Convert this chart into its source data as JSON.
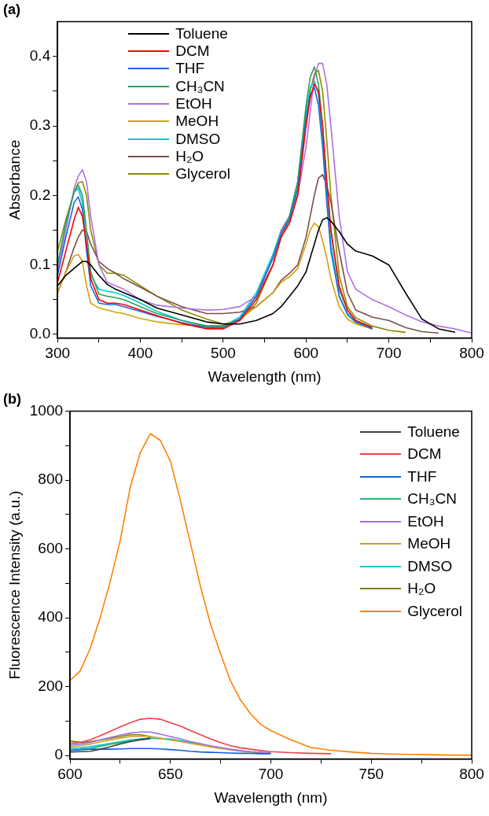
{
  "chart_data": [
    {
      "type": "line",
      "title": "(a)",
      "xlabel": "Wavelength (nm)",
      "ylabel": "Absorbance",
      "marker": "none",
      "line_style": "solid",
      "legend": "top left",
      "xlim": [
        300,
        800
      ],
      "ylim": [
        -0.005,
        0.45
      ],
      "xticks": [
        300,
        {
          "value": 350,
          "label": null
        },
        400,
        {
          "value": 450,
          "label": null
        },
        500,
        {
          "value": 550,
          "label": null
        },
        600,
        {
          "value": 650,
          "label": null
        },
        700,
        {
          "value": 750,
          "label": null
        },
        800
      ],
      "yticks": [
        {
          "value": 0,
          "label": "0.0"
        },
        {
          "value": 0.05,
          "label": null
        },
        0.1,
        {
          "value": 0.15,
          "label": null
        },
        0.2,
        {
          "value": 0.25,
          "label": null
        },
        0.3,
        {
          "value": 0.35,
          "label": null
        },
        0.4
      ],
      "x": [
        300,
        310,
        320,
        325,
        330,
        335,
        340,
        350,
        360,
        370,
        380,
        400,
        420,
        450,
        480,
        500,
        520,
        540,
        560,
        570,
        580,
        590,
        600,
        605,
        610,
        615,
        620,
        625,
        630,
        640,
        650,
        660,
        680,
        700,
        720,
        740,
        760,
        780,
        800
      ],
      "series": [
        {
          "name": "Toluene",
          "color": "#000000",
          "values": [
            0.07,
            0.085,
            0.095,
            0.1,
            0.105,
            0.105,
            0.1,
            0.085,
            0.072,
            0.065,
            0.06,
            0.05,
            0.038,
            0.028,
            0.018,
            0.015,
            0.015,
            0.02,
            0.03,
            0.04,
            0.055,
            0.07,
            0.09,
            0.11,
            0.13,
            0.15,
            0.165,
            0.168,
            0.163,
            0.148,
            0.13,
            0.12,
            0.113,
            0.1,
            0.06,
            0.022,
            0.008,
            0.003,
            null
          ]
        },
        {
          "name": "DCM",
          "color": "#ff0000",
          "values": [
            0.075,
            0.12,
            0.165,
            0.183,
            0.17,
            0.13,
            0.08,
            0.05,
            0.045,
            0.045,
            0.043,
            0.035,
            0.027,
            0.016,
            0.008,
            0.008,
            0.02,
            0.05,
            0.1,
            0.14,
            0.16,
            0.2,
            0.3,
            0.34,
            0.36,
            0.35,
            0.3,
            0.22,
            0.15,
            0.07,
            0.035,
            0.02,
            0.01,
            null,
            null,
            null,
            null,
            null,
            null
          ]
        },
        {
          "name": "THF",
          "color": "#1f66e0",
          "values": [
            0.085,
            0.14,
            0.19,
            0.198,
            0.18,
            0.12,
            0.07,
            0.045,
            0.043,
            0.043,
            0.04,
            0.033,
            0.026,
            0.017,
            0.01,
            0.01,
            0.022,
            0.055,
            0.11,
            0.145,
            0.165,
            0.21,
            0.31,
            0.345,
            0.355,
            0.33,
            0.27,
            0.19,
            0.12,
            0.055,
            0.03,
            0.018,
            0.008,
            null,
            null,
            null,
            null,
            null,
            null
          ]
        },
        {
          "name": "CH₃CN",
          "color": "#2ca05a",
          "values": [
            0.1,
            0.16,
            0.205,
            0.215,
            0.2,
            0.15,
            0.09,
            0.058,
            0.055,
            0.053,
            0.05,
            0.04,
            0.03,
            0.02,
            0.012,
            0.012,
            0.022,
            0.055,
            0.11,
            0.145,
            0.17,
            0.22,
            0.33,
            0.37,
            0.385,
            0.36,
            0.3,
            0.22,
            0.15,
            0.065,
            0.035,
            0.02,
            0.01,
            null,
            null,
            null,
            null,
            null,
            null
          ]
        },
        {
          "name": "EtOH",
          "color": "#b070e0",
          "values": [
            0.09,
            0.15,
            0.21,
            0.228,
            0.237,
            0.22,
            0.17,
            0.1,
            0.075,
            0.07,
            0.065,
            0.05,
            0.042,
            0.038,
            0.035,
            0.036,
            0.04,
            0.055,
            0.1,
            0.15,
            0.17,
            0.2,
            0.27,
            0.32,
            0.37,
            0.39,
            0.39,
            0.36,
            0.3,
            0.17,
            0.09,
            0.065,
            0.05,
            0.04,
            0.028,
            0.018,
            0.012,
            0.008,
            0.002
          ]
        },
        {
          "name": "MeOH",
          "color": "#d4a010",
          "values": [
            0.06,
            0.09,
            0.113,
            0.115,
            0.105,
            0.07,
            0.045,
            0.038,
            0.035,
            0.032,
            0.03,
            0.023,
            0.018,
            0.014,
            0.012,
            0.013,
            0.022,
            0.04,
            0.06,
            0.075,
            0.083,
            0.095,
            0.13,
            0.15,
            0.16,
            0.155,
            0.135,
            0.11,
            0.08,
            0.04,
            0.022,
            0.015,
            0.008,
            null,
            null,
            null,
            null,
            null,
            null
          ]
        },
        {
          "name": "DMSO",
          "color": "#00c8d0",
          "values": [
            0.1,
            0.16,
            0.205,
            0.21,
            0.19,
            0.13,
            0.085,
            0.065,
            0.062,
            0.06,
            0.056,
            0.045,
            0.033,
            0.02,
            0.012,
            0.012,
            0.025,
            0.06,
            0.115,
            0.15,
            0.17,
            0.22,
            0.32,
            0.355,
            0.365,
            0.345,
            0.28,
            0.2,
            0.13,
            0.055,
            0.028,
            0.017,
            0.008,
            null,
            null,
            null,
            null,
            null,
            null
          ]
        },
        {
          "name": "H₂O",
          "color": "#7a5048",
          "values": [
            0.06,
            0.09,
            0.125,
            0.14,
            0.15,
            0.148,
            0.13,
            0.105,
            0.095,
            0.088,
            0.08,
            0.068,
            0.055,
            0.04,
            0.03,
            0.03,
            0.032,
            0.04,
            0.06,
            0.078,
            0.088,
            0.1,
            0.14,
            0.17,
            0.2,
            0.225,
            0.23,
            0.215,
            0.19,
            0.12,
            0.06,
            0.035,
            0.025,
            0.02,
            0.01,
            0.004,
            0.002,
            null,
            null
          ]
        },
        {
          "name": "Glycerol",
          "color": "#8c8c00",
          "values": [
            0.12,
            0.165,
            0.205,
            0.218,
            0.22,
            0.2,
            0.15,
            0.1,
            0.088,
            0.088,
            0.085,
            0.07,
            0.055,
            0.035,
            0.022,
            0.015,
            0.02,
            0.045,
            0.1,
            0.14,
            0.165,
            0.21,
            0.31,
            0.35,
            0.375,
            0.38,
            0.35,
            0.28,
            0.2,
            0.085,
            0.04,
            0.024,
            0.012,
            0.006,
            0.003,
            null,
            null,
            null,
            null
          ]
        }
      ]
    },
    {
      "type": "line",
      "title": "(b)",
      "xlabel": "Wavelength (nm)",
      "ylabel": "Fluorescence Intensity (a.u.)",
      "marker": "none",
      "line_style": "solid",
      "legend": "top right",
      "xlim": [
        600,
        800
      ],
      "ylim": [
        -10,
        1000
      ],
      "xticks": [
        600,
        {
          "value": 625,
          "label": null
        },
        650,
        {
          "value": 675,
          "label": null
        },
        700,
        {
          "value": 725,
          "label": null
        },
        750,
        {
          "value": 775,
          "label": null
        },
        800
      ],
      "yticks": [
        0,
        {
          "value": 100,
          "label": null
        },
        200,
        {
          "value": 300,
          "label": null
        },
        400,
        {
          "value": 500,
          "label": null
        },
        600,
        {
          "value": 700,
          "label": null
        },
        800,
        {
          "value": 900,
          "label": null
        },
        1000
      ],
      "x": [
        600,
        605,
        610,
        615,
        620,
        625,
        630,
        635,
        640,
        645,
        650,
        655,
        660,
        665,
        670,
        675,
        680,
        685,
        690,
        695,
        700,
        710,
        720,
        730,
        740,
        750,
        760,
        770,
        780,
        790,
        800
      ],
      "series": [
        {
          "name": "Toluene",
          "color": "#404040",
          "values": [
            10,
            11,
            12,
            18,
            25,
            33,
            40,
            46,
            50,
            null,
            null,
            null,
            null,
            null,
            null,
            null,
            null,
            null,
            null,
            null,
            null,
            null,
            null,
            null,
            null,
            null,
            null,
            null,
            null,
            null,
            null
          ]
        },
        {
          "name": "DCM",
          "color": "#f04048",
          "values": [
            35,
            38,
            45,
            57,
            70,
            83,
            95,
            105,
            108,
            105,
            95,
            85,
            72,
            60,
            48,
            37,
            28,
            22,
            18,
            14,
            11,
            8,
            6,
            5,
            null,
            null,
            null,
            null,
            null,
            null,
            null
          ]
        },
        {
          "name": "THF",
          "color": "#1060e0",
          "values": [
            15,
            17,
            18,
            18,
            18,
            19,
            20,
            20,
            20,
            19,
            17,
            15,
            12,
            10,
            9,
            8,
            7,
            6,
            6,
            5,
            5,
            null,
            null,
            null,
            null,
            null,
            null,
            null,
            null,
            null,
            null
          ]
        },
        {
          "name": "CH₃CN",
          "color": "#30b070",
          "values": [
            15,
            17,
            20,
            26,
            32,
            37,
            42,
            45,
            48,
            null,
            null,
            null,
            null,
            null,
            null,
            null,
            null,
            null,
            null,
            null,
            null,
            null,
            null,
            null,
            null,
            null,
            null,
            null,
            null,
            null,
            null
          ]
        },
        {
          "name": "EtOH",
          "color": "#a070e0",
          "values": [
            30,
            33,
            38,
            45,
            52,
            59,
            65,
            68,
            68,
            62,
            55,
            48,
            40,
            34,
            28,
            23,
            18,
            14,
            11,
            9,
            7,
            null,
            null,
            null,
            null,
            null,
            null,
            null,
            null,
            null,
            null
          ]
        },
        {
          "name": "MeOH",
          "color": "#d0a020",
          "values": [
            25,
            28,
            33,
            39,
            45,
            50,
            55,
            56,
            55,
            50,
            45,
            40,
            35,
            30,
            25,
            20,
            16,
            12,
            10,
            8,
            7,
            null,
            null,
            null,
            null,
            null,
            null,
            null,
            null,
            null,
            null
          ]
        },
        {
          "name": "DMSO",
          "color": "#00c8d0",
          "values": [
            20,
            22,
            25,
            30,
            35,
            40,
            45,
            48,
            50,
            49,
            48,
            43,
            38,
            33,
            null,
            null,
            null,
            null,
            null,
            null,
            null,
            null,
            null,
            null,
            null,
            null,
            null,
            null,
            null,
            null,
            null
          ]
        },
        {
          "name": "H₂O",
          "color": "#808000",
          "values": [
            42,
            38,
            40,
            45,
            50,
            55,
            60,
            60,
            55,
            null,
            null,
            null,
            null,
            null,
            null,
            null,
            null,
            null,
            null,
            null,
            null,
            null,
            null,
            null,
            null,
            null,
            null,
            null,
            null,
            null,
            null
          ]
        },
        {
          "name": "Glycerol",
          "color": "#ff8000",
          "values": [
            218,
            245,
            310,
            400,
            505,
            625,
            780,
            880,
            935,
            915,
            855,
            740,
            615,
            490,
            380,
            295,
            215,
            160,
            120,
            90,
            72,
            45,
            23,
            15,
            10,
            6,
            4,
            3,
            2,
            1,
            1
          ]
        }
      ]
    }
  ]
}
